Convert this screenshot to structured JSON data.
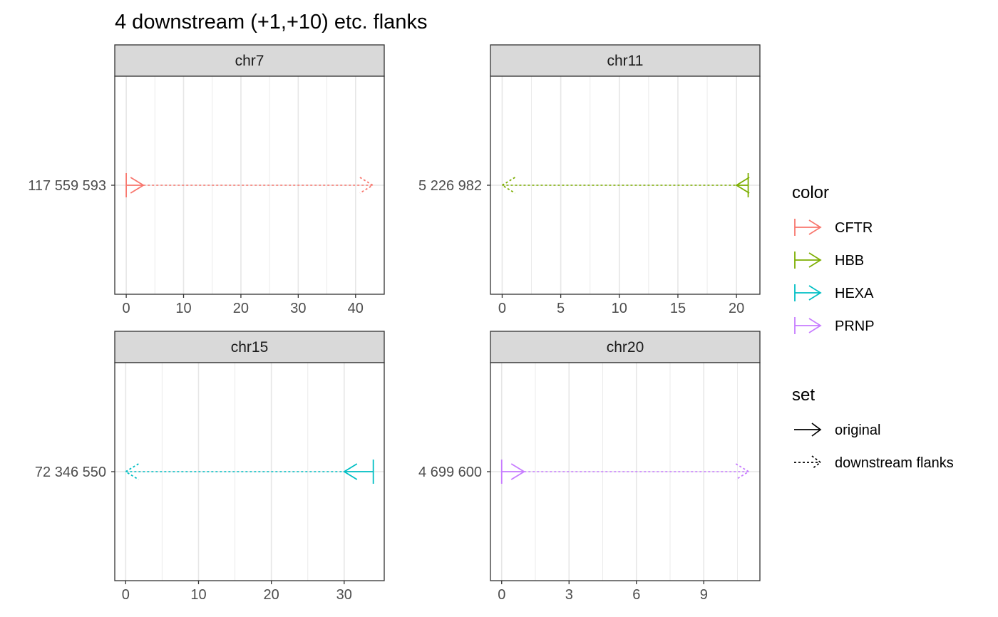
{
  "chart_data": {
    "type": "faceted-range-arrows",
    "title": "4 downstream (+1,+10) etc. flanks",
    "facets": [
      {
        "strip": "chr7",
        "y_tick": "117 559 593",
        "xlim": [
          -2,
          45
        ],
        "x_ticks": [
          0,
          10,
          20,
          30,
          40
        ],
        "x_minor": [
          5,
          15,
          25,
          35
        ],
        "segments": [
          {
            "set": "original",
            "gene": "CFTR",
            "start": 0,
            "end": 3,
            "direction": "right"
          },
          {
            "set": "downstream flanks",
            "gene": "CFTR",
            "start": 3,
            "end": 43,
            "direction": "right"
          }
        ]
      },
      {
        "strip": "chr11",
        "y_tick": "5 226 982",
        "xlim": [
          -1,
          22
        ],
        "x_ticks": [
          0,
          5,
          10,
          15,
          20
        ],
        "x_minor": [
          2.5,
          7.5,
          12.5,
          17.5
        ],
        "segments": [
          {
            "set": "original",
            "gene": "HBB",
            "start": 20,
            "end": 21,
            "direction": "left"
          },
          {
            "set": "downstream flanks",
            "gene": "HBB",
            "start": 0,
            "end": 20,
            "direction": "left"
          }
        ]
      },
      {
        "strip": "chr15",
        "y_tick": "72 346 550",
        "xlim": [
          -1.5,
          35.5
        ],
        "x_ticks": [
          0,
          10,
          20,
          30
        ],
        "x_minor": [
          5,
          15,
          25
        ],
        "segments": [
          {
            "set": "original",
            "gene": "HEXA",
            "start": 30,
            "end": 34,
            "direction": "left"
          },
          {
            "set": "downstream flanks",
            "gene": "HEXA",
            "start": 0,
            "end": 30,
            "direction": "left"
          }
        ]
      },
      {
        "strip": "chr20",
        "y_tick": "4 699 600",
        "xlim": [
          -0.5,
          11.5
        ],
        "x_ticks": [
          0,
          3,
          6,
          9
        ],
        "x_minor": [
          1.5,
          4.5,
          7.5,
          10.5
        ],
        "segments": [
          {
            "set": "original",
            "gene": "PRNP",
            "start": 0,
            "end": 1,
            "direction": "right"
          },
          {
            "set": "downstream flanks",
            "gene": "PRNP",
            "start": 1,
            "end": 11,
            "direction": "right"
          }
        ]
      }
    ],
    "legend": {
      "placement": "right",
      "color_title": "color",
      "color_items": [
        {
          "label": "CFTR",
          "color": "#F8766D"
        },
        {
          "label": "HBB",
          "color": "#7CAE00"
        },
        {
          "label": "HEXA",
          "color": "#00BFC4"
        },
        {
          "label": "PRNP",
          "color": "#C77CFF"
        }
      ],
      "set_title": "set",
      "set_items": [
        {
          "label": "original",
          "linetype": "solid"
        },
        {
          "label": "downstream flanks",
          "linetype": "dotted"
        }
      ]
    },
    "grid": true
  }
}
